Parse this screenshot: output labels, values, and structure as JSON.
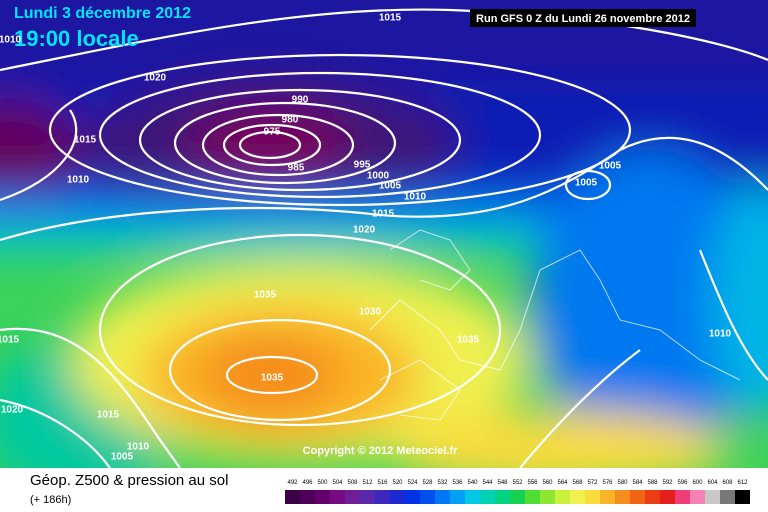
{
  "header": {
    "date": "Lundi 3 décembre 2012",
    "time": "19:00 locale",
    "run": "Run GFS 0 Z du Lundi 26 novembre 2012"
  },
  "isobar_labels": [
    "1015",
    "1010",
    "1020",
    "990",
    "980",
    "975",
    "985",
    "995",
    "1000",
    "1005",
    "1015",
    "1010",
    "1010",
    "1015",
    "1020",
    "1005",
    "1005",
    "1035",
    "1030",
    "1035",
    "1035",
    "1010",
    "1015",
    "1020",
    "1015",
    "1010",
    "1005"
  ],
  "copyright": "Copyright © 2012 Meteociel.fr",
  "footer": {
    "title": "Géop. Z500 & pression au sol",
    "lead": "(+ 186h)"
  },
  "legend": {
    "values": [
      492,
      496,
      500,
      504,
      508,
      512,
      516,
      520,
      524,
      528,
      532,
      536,
      540,
      544,
      548,
      552,
      556,
      560,
      564,
      568,
      572,
      576,
      580,
      584,
      588,
      592,
      596,
      600,
      604,
      608,
      612
    ],
    "colors": [
      "#3c0046",
      "#50005a",
      "#64006e",
      "#780a82",
      "#6e1e96",
      "#5a28aa",
      "#3c28be",
      "#1e28d2",
      "#0032e6",
      "#0050f0",
      "#0078f5",
      "#00a0f5",
      "#00c8e6",
      "#00d2b4",
      "#00d282",
      "#14d250",
      "#50dc32",
      "#8ce632",
      "#c8f03c",
      "#f0f050",
      "#fadc3c",
      "#fab428",
      "#f58c1e",
      "#f06414",
      "#eb3c14",
      "#e61e1e",
      "#f03c78",
      "#f582b4",
      "#c8c8c8",
      "#787878",
      "#000000"
    ]
  }
}
